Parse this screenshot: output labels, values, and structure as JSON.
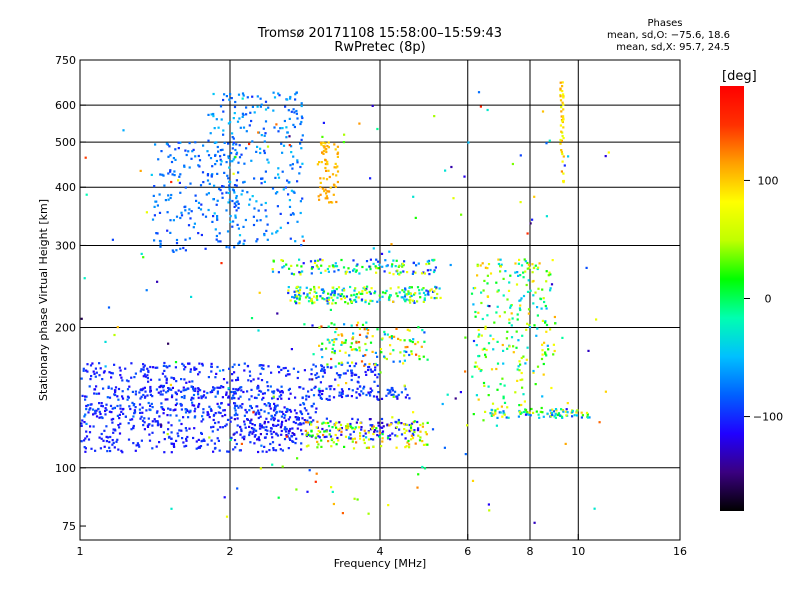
{
  "header": {
    "title_line1": "Tromsø 20171108 15:58:00–15:59:43",
    "title_line2": "RwPretec (8p)"
  },
  "phase_stats": {
    "heading": "Phases",
    "o_line": "mean, sd,O: −75.6, 18.6",
    "x_line": "mean, sd,X:  95.7, 24.5"
  },
  "colorbar": {
    "unit": "[deg]",
    "ticks": [
      {
        "value": 100,
        "label": "100"
      },
      {
        "value": 0,
        "label": "0"
      },
      {
        "value": -100,
        "label": "−100"
      }
    ],
    "range": [
      -180,
      180
    ],
    "colors": [
      "#000000",
      "#3a0080",
      "#2000ff",
      "#0060ff",
      "#00c0ff",
      "#00ffb0",
      "#00ff00",
      "#c0ff00",
      "#ffff00",
      "#ffa000",
      "#ff3000",
      "#ff0000"
    ]
  },
  "chart_data": {
    "type": "scatter",
    "xlabel": "Frequency [MHz]",
    "ylabel": "Stationary phase Virtual Height [km]",
    "xscale": "log",
    "yscale": "log",
    "xlim": [
      1,
      16
    ],
    "ylim": [
      70,
      750
    ],
    "grid": true,
    "x_ticks": [
      {
        "value": 1,
        "label": "1"
      },
      {
        "value": 2,
        "label": "2"
      },
      {
        "value": 4,
        "label": "4"
      },
      {
        "value": 6,
        "label": "6"
      },
      {
        "value": 8,
        "label": "8"
      },
      {
        "value": 10,
        "label": "10"
      },
      {
        "value": 16,
        "label": "16"
      }
    ],
    "y_ticks": [
      {
        "value": 75,
        "label": "75"
      },
      {
        "value": 100,
        "label": "100"
      },
      {
        "value": 200,
        "label": "200"
      },
      {
        "value": 300,
        "label": "300"
      },
      {
        "value": 400,
        "label": "400"
      },
      {
        "value": 500,
        "label": "500"
      },
      {
        "value": 600,
        "label": "600"
      },
      {
        "value": 750,
        "label": "750"
      }
    ],
    "x_gridlines": [
      2,
      4,
      6,
      8,
      10
    ],
    "y_gridlines": [
      100,
      200,
      300,
      400,
      500,
      600
    ],
    "traces": [
      {
        "id": "e-lower-1",
        "x_range": [
          1.0,
          2.8
        ],
        "height": [
          108,
          128
        ],
        "phase": [
          -115,
          -90
        ],
        "count": 260
      },
      {
        "id": "e-lower-2",
        "x_range": [
          1.0,
          3.0
        ],
        "height": [
          128,
          138
        ],
        "phase": [
          -120,
          -75
        ],
        "count": 240
      },
      {
        "id": "e-mid-1",
        "x_range": [
          1.0,
          4.6
        ],
        "height": [
          140,
          150
        ],
        "phase": [
          -120,
          -80
        ],
        "count": 300
      },
      {
        "id": "e-mid-2",
        "x_range": [
          1.0,
          4.0
        ],
        "height": [
          152,
          168
        ],
        "phase": [
          -115,
          -85
        ],
        "count": 220
      },
      {
        "id": "e-low-ext",
        "x_range": [
          2.0,
          4.8
        ],
        "height": [
          115,
          128
        ],
        "phase": [
          -130,
          -90
        ],
        "count": 160
      },
      {
        "id": "x-low",
        "x_range": [
          2.8,
          5.0
        ],
        "height": [
          110,
          126
        ],
        "phase": [
          -10,
          130
        ],
        "count": 140
      },
      {
        "id": "f-mid",
        "x_range": [
          2.6,
          5.3
        ],
        "height": [
          225,
          245
        ],
        "phase": [
          -110,
          100
        ],
        "count": 220
      },
      {
        "id": "f-upper",
        "x_range": [
          2.4,
          5.2
        ],
        "height": [
          260,
          280
        ],
        "phase": [
          -110,
          90
        ],
        "count": 130
      },
      {
        "id": "f-rise",
        "x_range": [
          3.0,
          5.0
        ],
        "height": [
          165,
          205
        ],
        "phase": [
          -90,
          140
        ],
        "count": 140
      },
      {
        "id": "sporadic-left",
        "x_range": [
          1.4,
          2.1
        ],
        "height": [
          290,
          500
        ],
        "phase": [
          -100,
          -60
        ],
        "count": 180
      },
      {
        "id": "cusp-2mhz",
        "x_range": [
          1.8,
          2.8
        ],
        "height": [
          300,
          640
        ],
        "phase": [
          -95,
          -45
        ],
        "count": 260
      },
      {
        "id": "yellow-blob",
        "x_range": [
          3.0,
          3.3
        ],
        "height": [
          370,
          500
        ],
        "phase": [
          95,
          120
        ],
        "count": 70
      },
      {
        "id": "high-band",
        "x_range": [
          6.1,
          9.0
        ],
        "height": [
          130,
          280
        ],
        "phase": [
          -60,
          110
        ],
        "count": 240
      },
      {
        "id": "ext-band",
        "x_range": [
          6.6,
          10.6
        ],
        "height": [
          128,
          134
        ],
        "phase": [
          -110,
          100
        ],
        "count": 90
      },
      {
        "id": "spike-9mhz",
        "x_range": [
          9.2,
          9.35
        ],
        "height": [
          400,
          680
        ],
        "phase": [
          60,
          120
        ],
        "count": 45
      }
    ],
    "scatter_noise": {
      "x_range": [
        1.0,
        12.0
      ],
      "height": [
        75,
        650
      ],
      "phase": [
        -160,
        160
      ],
      "count": 180
    }
  }
}
